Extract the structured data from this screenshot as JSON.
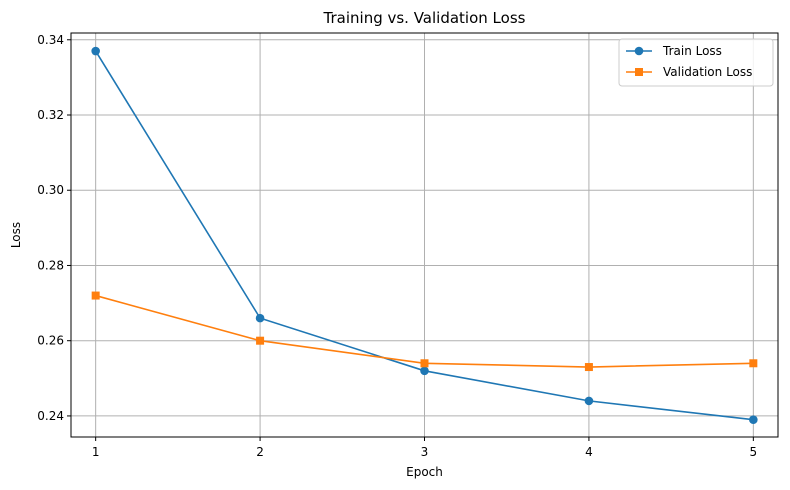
{
  "chart_data": {
    "type": "line",
    "title": "Training vs. Validation Loss",
    "xlabel": "Epoch",
    "ylabel": "Loss",
    "x": [
      1,
      2,
      3,
      4,
      5
    ],
    "xticks": [
      "1",
      "2",
      "3",
      "4",
      "5"
    ],
    "xlim": [
      0.85,
      5.15
    ],
    "ylim": [
      0.2344,
      0.3418
    ],
    "yticks": [
      "0.24",
      "0.26",
      "0.28",
      "0.30",
      "0.32",
      "0.34"
    ],
    "ytick_values": [
      0.24,
      0.26,
      0.28,
      0.3,
      0.32,
      0.34
    ],
    "grid": true,
    "legend_position": "top-right",
    "series": [
      {
        "name": "Train Loss",
        "color": "#1f77b4",
        "marker": "circle",
        "values": [
          0.337,
          0.266,
          0.252,
          0.244,
          0.239
        ]
      },
      {
        "name": "Validation Loss",
        "color": "#ff7f0e",
        "marker": "square",
        "values": [
          0.272,
          0.26,
          0.254,
          0.253,
          0.254
        ]
      }
    ]
  }
}
